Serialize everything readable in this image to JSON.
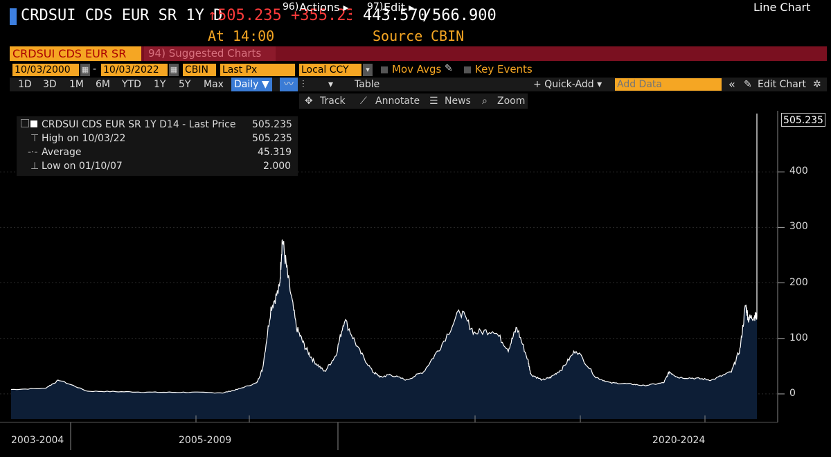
{
  "header": {
    "ticker": "CRDSUI CDS EUR SR 1Y D",
    "arrow": "↑",
    "last": "505.235",
    "change": "+355.23(",
    "range_low": "443.570",
    "range_sep": "/",
    "range_high": "566.900",
    "at_label": "At",
    "at_time": "14:00",
    "source_label": "Source",
    "source_value": "CBIN"
  },
  "menu": {
    "security": "CRDSUI CDS EUR SR",
    "suggested": "94) Suggested Charts",
    "actions_num": "96)",
    "actions": "Actions ▸",
    "edit_num": "97)",
    "edit": "Edit ▸",
    "chart_type": "Line Chart"
  },
  "settings": {
    "start_date": "10/03/2000",
    "dash": "-",
    "end_date": "10/03/2022",
    "source": "CBIN",
    "field": "Last Px",
    "currency": "Local CCY",
    "mov_avgs": "Mov Avgs",
    "key_events": "Key Events"
  },
  "toolbar": {
    "periods": [
      "1D",
      "3D",
      "1M",
      "6M",
      "YTD",
      "1Y",
      "5Y",
      "Max"
    ],
    "frequency": "Daily ▼",
    "table": "Table",
    "quick_add": "+ Quick-Add ▾",
    "add_data_placeholder": "Add Data",
    "collapse": "«",
    "edit_chart": "Edit Chart",
    "track": "Track",
    "annotate": "Annotate",
    "news": "News",
    "zoom": "Zoom"
  },
  "legend": {
    "series": "CRDSUI CDS EUR SR 1Y D14 - Last Price",
    "series_value": "505.235",
    "high_label": "High on 10/03/22",
    "high_value": "505.235",
    "avg_label": "Average",
    "avg_value": "45.319",
    "low_label": "Low on 01/10/07",
    "low_value": "2.000"
  },
  "chart_data": {
    "type": "area",
    "title": "",
    "xlabel": "",
    "ylabel": "",
    "ylim": [
      -45,
      510
    ],
    "yticks": [
      0,
      100,
      200,
      300,
      400
    ],
    "x_group_labels": [
      "2003-2004",
      "2005-2009",
      "2020-2024"
    ],
    "last_value_label": "505.235",
    "fill_color": "#0d1e36",
    "line_color": "#ffffff",
    "x": [
      "2000-10",
      "2001-10",
      "2002-03",
      "2003-01",
      "2004-01",
      "2005-01",
      "2006-01",
      "2007-01",
      "2007-06",
      "2008-01",
      "2008-03",
      "2008-06",
      "2008-09",
      "2008-10",
      "2008-12",
      "2009-03",
      "2009-06",
      "2009-09",
      "2010-01",
      "2010-05",
      "2010-08",
      "2011-01",
      "2011-06",
      "2011-09",
      "2011-12",
      "2012-06",
      "2012-12",
      "2013-06",
      "2014-01",
      "2014-06",
      "2015-01",
      "2015-06",
      "2015-09",
      "2016-01",
      "2016-02",
      "2016-06",
      "2016-09",
      "2017-01",
      "2017-06",
      "2018-01",
      "2018-06",
      "2019-01",
      "2019-06",
      "2020-01",
      "2020-03",
      "2020-06",
      "2021-01",
      "2021-06",
      "2022-01",
      "2022-04",
      "2022-06",
      "2022-07",
      "2022-09",
      "2022-10"
    ],
    "values": [
      8,
      10,
      25,
      5,
      4,
      3,
      3,
      2,
      8,
      20,
      45,
      155,
      190,
      280,
      210,
      120,
      85,
      60,
      40,
      70,
      135,
      80,
      40,
      30,
      35,
      25,
      40,
      85,
      150,
      110,
      115,
      80,
      120,
      60,
      35,
      25,
      30,
      45,
      80,
      30,
      20,
      18,
      15,
      20,
      40,
      30,
      28,
      25,
      40,
      80,
      160,
      135,
      140,
      505
    ]
  }
}
